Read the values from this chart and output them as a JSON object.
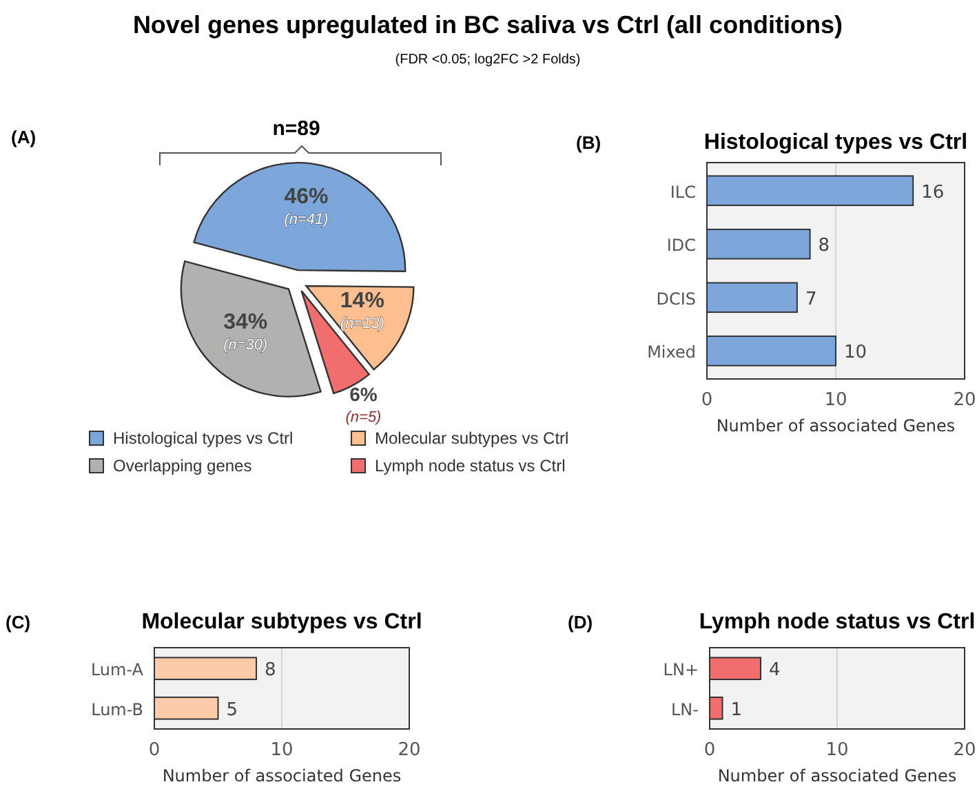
{
  "chart_data": [
    {
      "type": "pie",
      "title": "Novel genes upregulated in BC saliva vs Ctrl (all conditions)",
      "subtitle": "(FDR <0.05;  log2FC >2 Folds)",
      "annotations": [
        "(A)",
        "n=89"
      ],
      "categories": [
        "Histological types vs Ctrl",
        "Molecular subtypes vs Ctrl",
        "Lymph node status vs Ctrl",
        "Overlapping genes"
      ],
      "values": [
        46,
        14,
        6,
        34
      ],
      "value_labels": [
        "46% (n=41)",
        "14% (n=13)",
        "6% (n=5)",
        "34% (n=30)"
      ],
      "colors": [
        "#7da7db",
        "#fdbf8f",
        "#f26d6d",
        "#b3b0b0"
      ],
      "legend": "bottom"
    },
    {
      "type": "bar",
      "orientation": "horizontal",
      "title": "Histological types vs Ctrl",
      "annotations": [
        "(B)"
      ],
      "categories": [
        "ILC",
        "IDC",
        "DCIS",
        "Mixed"
      ],
      "values": [
        16,
        8,
        7,
        10
      ],
      "color": "#7da7db",
      "xlim": [
        0,
        20
      ],
      "xticks": [
        0,
        10,
        20
      ],
      "xlabel": "Number of associated Genes",
      "grid": "x",
      "data_labels": true
    },
    {
      "type": "bar",
      "orientation": "horizontal",
      "title": "Molecular subtypes vs Ctrl",
      "annotations": [
        "(C)"
      ],
      "categories": [
        "Lum-A",
        "Lum-B"
      ],
      "values": [
        8,
        5
      ],
      "color": "#fdcbaa",
      "xlim": [
        0,
        20
      ],
      "xticks": [
        0,
        10,
        20
      ],
      "xlabel": "Number of associated Genes",
      "grid": "x",
      "data_labels": true
    },
    {
      "type": "bar",
      "orientation": "horizontal",
      "title": "Lymph node status vs Ctrl",
      "annotations": [
        "(D)"
      ],
      "categories": [
        "LN+",
        "LN-"
      ],
      "values": [
        4,
        1
      ],
      "color": "#f26d6d",
      "xlim": [
        0,
        20
      ],
      "xticks": [
        0,
        10,
        20
      ],
      "xlabel": "Number of associated Genes",
      "grid": "x",
      "data_labels": true
    }
  ]
}
